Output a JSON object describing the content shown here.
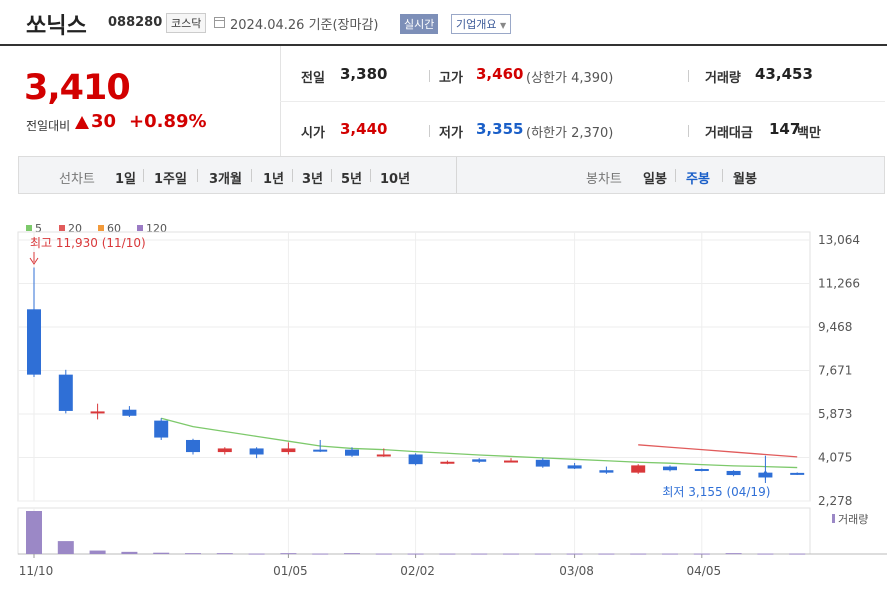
{
  "header": {
    "name": "쏘닉스",
    "code": "088280",
    "market": "코스닥",
    "date": "2024.04.26 기준(장마감)",
    "realtime_btn": "실시간",
    "company_btn": "기업개요"
  },
  "price": {
    "current": "3,410",
    "change_label": "전일대비",
    "change": "30",
    "change_pct": "+0.89%",
    "prev_label": "전일",
    "prev": "3,380",
    "high_label": "고가",
    "high": "3,460",
    "upper_limit": "(상한가 4,390)",
    "volume_label": "거래량",
    "volume": "43,453",
    "open_label": "시가",
    "open": "3,440",
    "low_label": "저가",
    "low": "3,355",
    "lower_limit": "(하한가 2,370)",
    "amount_label": "거래대금",
    "amount": "147",
    "amount_unit": "백만"
  },
  "period_bar": {
    "line_label": "선차트",
    "line_items": [
      "1일",
      "1주일",
      "3개월",
      "1년",
      "3년",
      "5년",
      "10년"
    ],
    "candle_label": "봉차트",
    "candle_items": [
      "일봉",
      "주봉",
      "월봉"
    ],
    "candle_selected": "주봉"
  },
  "colors": {
    "up": "#d9383a",
    "down": "#2f6fd6",
    "ma5": "#7dc96b",
    "ma20": "#e15b5b",
    "ma60": "#f29a3a",
    "ma120": "#9b7bc4",
    "volume": "#9b88c6"
  },
  "chart_data": {
    "type": "candlestick",
    "interval": "weekly",
    "legend": [
      "5",
      "20",
      "60",
      "120"
    ],
    "y_ticks": [
      "13,064",
      "11,266",
      "9,468",
      "7,671",
      "5,873",
      "4,075",
      "2,278"
    ],
    "y_tick_values": [
      13064,
      11266,
      9468,
      7671,
      5873,
      4075,
      2278
    ],
    "x_ticks": [
      "11/10",
      "01/05",
      "02/02",
      "03/08",
      "04/05"
    ],
    "x_tick_index": [
      0,
      8,
      12,
      17,
      21
    ],
    "annotations": {
      "max_label": "최고 11,930 (11/10)",
      "min_label": "최저 3,155 (04/19)"
    },
    "volume_label": "거래량",
    "candles": [
      {
        "o": 10200,
        "h": 11930,
        "l": 7400,
        "c": 7500
      },
      {
        "o": 7500,
        "h": 7700,
        "l": 5900,
        "c": 6000
      },
      {
        "o": 5950,
        "h": 6300,
        "l": 5650,
        "c": 5980
      },
      {
        "o": 6050,
        "h": 6200,
        "l": 5750,
        "c": 5800
      },
      {
        "o": 5600,
        "h": 5700,
        "l": 4800,
        "c": 4900
      },
      {
        "o": 4800,
        "h": 4850,
        "l": 4200,
        "c": 4300
      },
      {
        "o": 4300,
        "h": 4500,
        "l": 4200,
        "c": 4450
      },
      {
        "o": 4450,
        "h": 4500,
        "l": 4050,
        "c": 4200
      },
      {
        "o": 4300,
        "h": 4700,
        "l": 4200,
        "c": 4450
      },
      {
        "o": 4400,
        "h": 4800,
        "l": 4300,
        "c": 4350
      },
      {
        "o": 4400,
        "h": 4500,
        "l": 4100,
        "c": 4150
      },
      {
        "o": 4200,
        "h": 4450,
        "l": 4100,
        "c": 4200
      },
      {
        "o": 4200,
        "h": 4250,
        "l": 3750,
        "c": 3800
      },
      {
        "o": 3850,
        "h": 3950,
        "l": 3800,
        "c": 3900
      },
      {
        "o": 4000,
        "h": 4050,
        "l": 3850,
        "c": 3900
      },
      {
        "o": 3950,
        "h": 4050,
        "l": 3900,
        "c": 3950
      },
      {
        "o": 3980,
        "h": 4050,
        "l": 3650,
        "c": 3700
      },
      {
        "o": 3750,
        "h": 3850,
        "l": 3600,
        "c": 3620
      },
      {
        "o": 3550,
        "h": 3700,
        "l": 3400,
        "c": 3450
      },
      {
        "o": 3450,
        "h": 3800,
        "l": 3400,
        "c": 3750
      },
      {
        "o": 3700,
        "h": 3750,
        "l": 3500,
        "c": 3550
      },
      {
        "o": 3600,
        "h": 3620,
        "l": 3500,
        "c": 3540
      },
      {
        "o": 3520,
        "h": 3550,
        "l": 3300,
        "c": 3350
      },
      {
        "o": 3450,
        "h": 4150,
        "l": 3155,
        "c": 3250
      },
      {
        "o": 3440,
        "h": 3460,
        "l": 3355,
        "c": 3410
      }
    ],
    "ma5": [
      null,
      null,
      null,
      null,
      5700,
      5350,
      5150,
      4950,
      4750,
      4550,
      4450,
      4400,
      4320,
      4250,
      4180,
      4120,
      4060,
      4000,
      3940,
      3880,
      3840,
      3780,
      3730,
      3700,
      3660
    ],
    "ma20": [
      null,
      null,
      null,
      null,
      null,
      null,
      null,
      null,
      null,
      null,
      null,
      null,
      null,
      null,
      null,
      null,
      null,
      null,
      null,
      4600,
      4500,
      4400,
      4300,
      4200,
      4100
    ],
    "volume": [
      100,
      30,
      8,
      5,
      3,
      2,
      2,
      1,
      2,
      1,
      2,
      1,
      1,
      1,
      1,
      1,
      1,
      1,
      1,
      1,
      1,
      1,
      2,
      1,
      1
    ]
  }
}
